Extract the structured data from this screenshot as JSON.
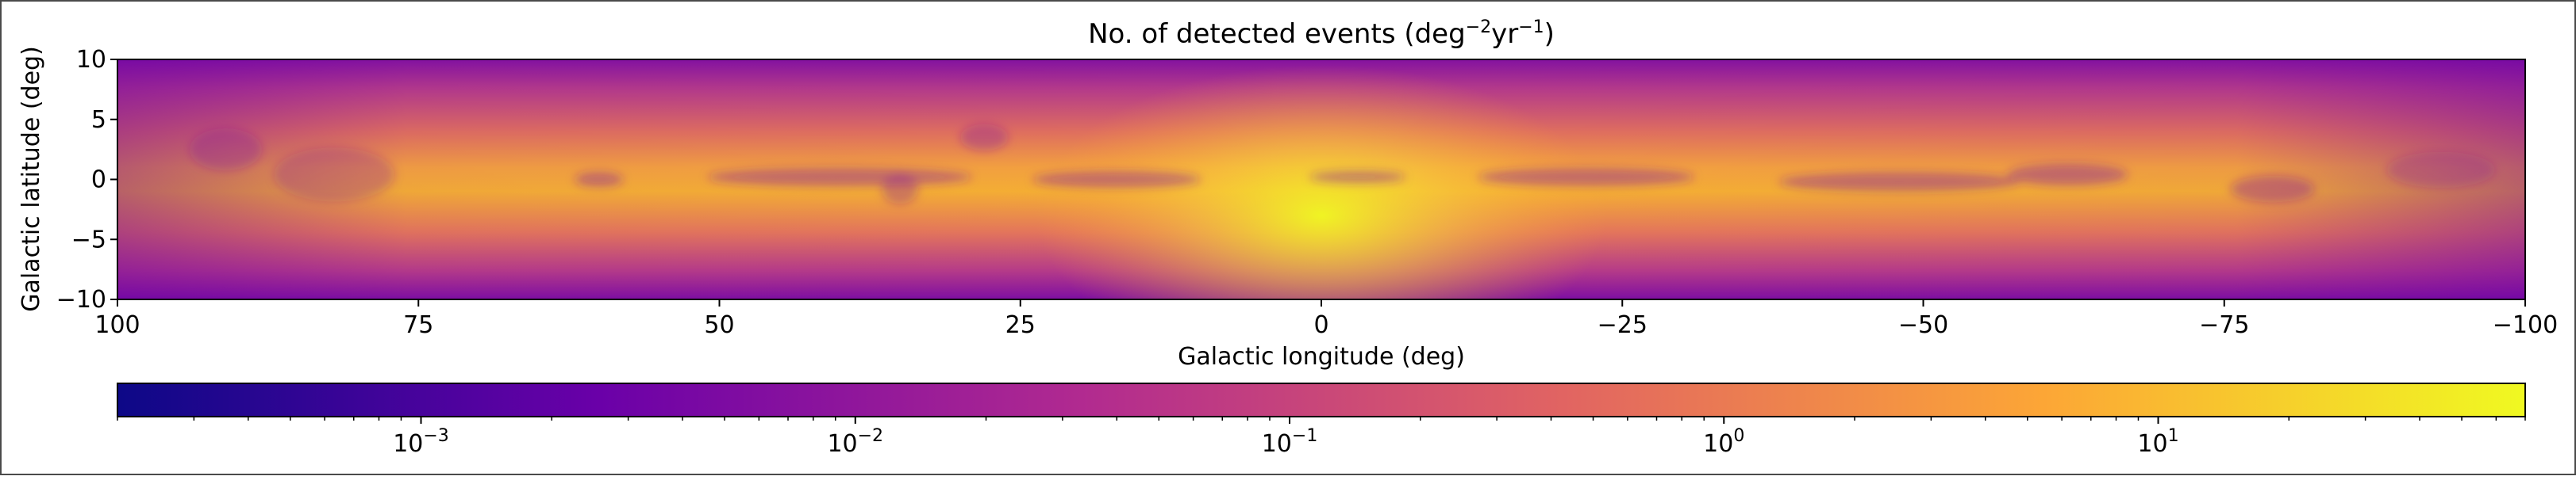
{
  "chart_data": {
    "type": "heatmap",
    "title": {
      "prefix": "No. of detected events (deg",
      "exp1": "−2",
      "mid": "yr",
      "exp2": "−1",
      "suffix": ")"
    },
    "xlabel": "Galactic longitude (deg)",
    "ylabel": "Galactic latitude (deg)",
    "xlim": [
      100,
      -100
    ],
    "ylim": [
      -10,
      10
    ],
    "x_ticks": [
      {
        "value": 100,
        "label": "100"
      },
      {
        "value": 75,
        "label": "75"
      },
      {
        "value": 50,
        "label": "50"
      },
      {
        "value": 25,
        "label": "25"
      },
      {
        "value": 0,
        "label": "0"
      },
      {
        "value": -25,
        "label": "−25"
      },
      {
        "value": -50,
        "label": "−50"
      },
      {
        "value": -75,
        "label": "−75"
      },
      {
        "value": -100,
        "label": "−100"
      }
    ],
    "y_ticks": [
      {
        "value": 10,
        "label": "10"
      },
      {
        "value": 5,
        "label": "5"
      },
      {
        "value": 0,
        "label": "0"
      },
      {
        "value": -5,
        "label": "−5"
      },
      {
        "value": -10,
        "label": "−10"
      }
    ],
    "colorbar": {
      "scale": "log",
      "colormap": "plasma",
      "range": [
        0.0002,
        70
      ],
      "ticks": [
        {
          "value": 0.001,
          "base": "10",
          "exp": "−3"
        },
        {
          "value": 0.01,
          "base": "10",
          "exp": "−2"
        },
        {
          "value": 0.1,
          "base": "10",
          "exp": "−1"
        },
        {
          "value": 1,
          "base": "10",
          "exp": "0"
        },
        {
          "value": 10,
          "base": "10",
          "exp": "1"
        }
      ],
      "colors": [
        "#0d0887",
        "#6a00a8",
        "#b12a90",
        "#e16462",
        "#fca636",
        "#f0f921"
      ]
    },
    "dark_band_features": [
      {
        "l": 40,
        "b": 0.2,
        "dl": 22,
        "db": 1.5,
        "level": 0.45
      },
      {
        "l": 17,
        "b": 0.0,
        "dl": 14,
        "db": 1.4,
        "level": 0.45
      },
      {
        "l": -3,
        "b": 0.2,
        "dl": 8,
        "db": 1.0,
        "level": 0.45
      },
      {
        "l": -22,
        "b": 0.2,
        "dl": 18,
        "db": 1.5,
        "level": 0.45
      },
      {
        "l": -48,
        "b": -0.2,
        "dl": 20,
        "db": 1.6,
        "level": 0.45
      },
      {
        "l": -62,
        "b": 0.4,
        "dl": 10,
        "db": 1.8,
        "level": 0.45
      },
      {
        "l": -79,
        "b": -0.8,
        "dl": 7,
        "db": 2.2,
        "level": 0.4
      },
      {
        "l": 82,
        "b": 0.4,
        "dl": 10,
        "db": 4.5,
        "level": 0.28
      },
      {
        "l": 91,
        "b": 2.5,
        "dl": 6,
        "db": 3.5,
        "level": 0.32
      },
      {
        "l": -93,
        "b": 0.8,
        "dl": 9,
        "db": 3.0,
        "level": 0.28
      },
      {
        "l": 35,
        "b": -0.8,
        "dl": 3,
        "db": 2.5,
        "level": 0.35
      },
      {
        "l": 28,
        "b": 3.5,
        "dl": 4,
        "db": 2.2,
        "level": 0.35
      },
      {
        "l": 60,
        "b": 0.0,
        "dl": 4,
        "db": 1.2,
        "level": 0.45
      }
    ]
  }
}
